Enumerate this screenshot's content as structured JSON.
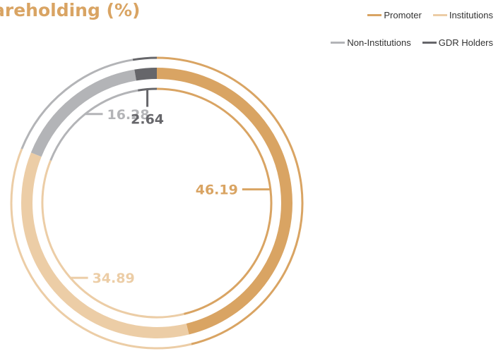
{
  "chart_data": {
    "type": "pie",
    "title": "areholding (%)",
    "categories": [
      "Promoter",
      "Institutions",
      "Non-Institutions",
      "GDR Holders"
    ],
    "values": [
      46.19,
      34.89,
      16.28,
      2.64
    ],
    "colors": [
      "#d9a463",
      "#eccda6",
      "#b3b4b7",
      "#66666a"
    ],
    "legend_position": "top-right",
    "data_labels": [
      "46.19",
      "34.89",
      "16.28",
      "2.64"
    ]
  }
}
